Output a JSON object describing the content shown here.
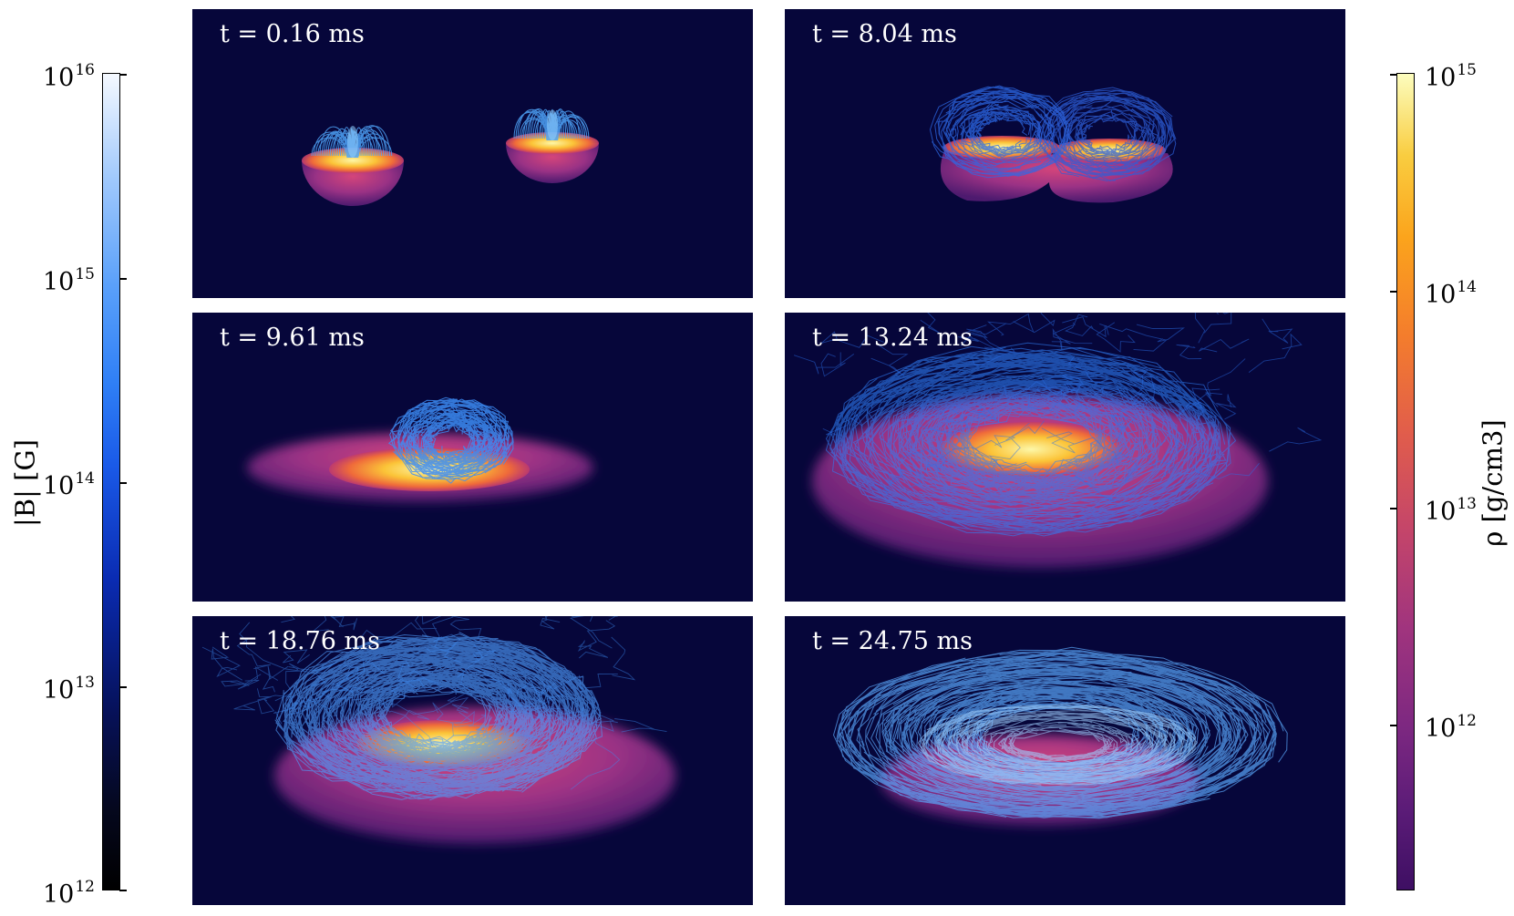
{
  "panels": [
    {
      "label": "t = 0.16 ms",
      "t_ms": 0.16
    },
    {
      "label": "t = 8.04 ms",
      "t_ms": 8.04
    },
    {
      "label": "t = 9.61 ms",
      "t_ms": 9.61
    },
    {
      "label": "t = 13.24 ms",
      "t_ms": 13.24
    },
    {
      "label": "t = 18.76 ms",
      "t_ms": 18.76
    },
    {
      "label": "t = 24.75 ms",
      "t_ms": 24.75
    }
  ],
  "colorbar_B": {
    "title": "|B| [G]",
    "scale": "log",
    "range": [
      1000000000000.0,
      1e+16
    ],
    "ticks": [
      {
        "base": "10",
        "exp": "12",
        "value": 1000000000000.0
      },
      {
        "base": "10",
        "exp": "13",
        "value": 10000000000000.0
      },
      {
        "base": "10",
        "exp": "14",
        "value": 100000000000000.0
      },
      {
        "base": "10",
        "exp": "15",
        "value": 1000000000000000.0
      },
      {
        "base": "10",
        "exp": "16",
        "value": 1e+16
      }
    ],
    "colormap": [
      "#000000",
      "#06115a",
      "#1a5ae8",
      "#5aa0fa",
      "#f5f9ff"
    ]
  },
  "colorbar_rho": {
    "title": "ρ [g/cm3]",
    "scale": "log",
    "range": [
      200000000000.0,
      1000000000000000.0
    ],
    "ticks": [
      {
        "base": "10",
        "exp": "12",
        "value": 1000000000000.0
      },
      {
        "base": "10",
        "exp": "13",
        "value": 10000000000000.0
      },
      {
        "base": "10",
        "exp": "14",
        "value": 100000000000000.0
      },
      {
        "base": "10",
        "exp": "15",
        "value": 1000000000000000.0
      }
    ],
    "colormap": [
      "#3e0f63",
      "#a0347e",
      "#e15d4b",
      "#fba41c",
      "#fcfdbe"
    ]
  },
  "colors": {
    "panel_background": "#06063a",
    "field_lines": "#3d8df5",
    "density_low": "#7a2a7a",
    "density_high": "#fce86a"
  }
}
